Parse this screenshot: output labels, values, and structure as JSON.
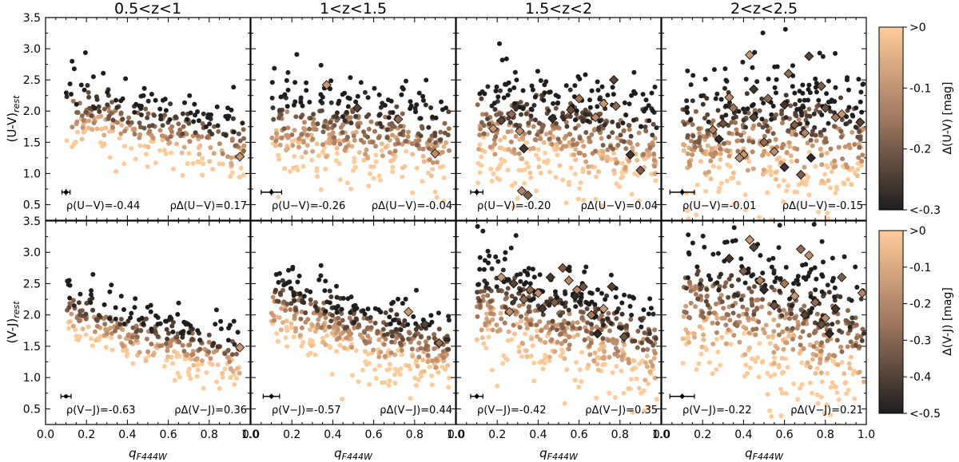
{
  "chart_data": {
    "type": "scatter",
    "figure_description_free": true,
    "xlabel": "q",
    "xlabel_subscript": "F444W",
    "xlim": [
      0.0,
      1.0
    ],
    "xticks": [
      "0.0",
      "0.2",
      "0.4",
      "0.6",
      "0.8",
      "1.0"
    ],
    "ylim": [
      0.25,
      3.5
    ],
    "yticks": [
      "0.5",
      "1.0",
      "1.5",
      "2.0",
      "2.5",
      "3.0",
      "3.5"
    ],
    "columns": [
      {
        "title": "0.5<z<1",
        "zmin": 0.5,
        "zmax": 1.0
      },
      {
        "title": "1<z<1.5",
        "zmin": 1.0,
        "zmax": 1.5
      },
      {
        "title": "1.5<z<2",
        "zmin": 1.5,
        "zmax": 2.0
      },
      {
        "title": "2<z<2.5",
        "zmin": 2.0,
        "zmax": 2.5
      }
    ],
    "rows": [
      {
        "ylabel": "(U-V)",
        "ylabel_subscript": "rest",
        "rho_label": "ρ(U−V)",
        "rho_delta_label": "ρΔ(U−V)",
        "rho_values": [
          "=-0.44",
          "=-0.26",
          "=-0.20",
          "=-0.01"
        ],
        "rho_delta_values": [
          "=0.17",
          "=-0.04",
          "=0.04",
          "=-0.15"
        ],
        "colorbar": {
          "label": "Δ(U-V) [mag]",
          "ticks": [
            ">0",
            "-0.1",
            "-0.2",
            "<-0.3"
          ],
          "range": [
            0,
            -0.3
          ]
        }
      },
      {
        "ylabel": "(V-J)",
        "ylabel_subscript": "rest",
        "rho_label": "ρ(V−J)",
        "rho_delta_label": "ρΔ(V−J)",
        "rho_values": [
          "=-0.63",
          "=-0.57",
          "=-0.42",
          "=-0.22"
        ],
        "rho_delta_values": [
          "=0.36",
          "=0.44",
          "=0.35",
          "=0.21"
        ],
        "colorbar": {
          "label": "Δ(V-J) [mag]",
          "ticks": [
            ">0",
            "-0.1",
            "-0.2",
            "-0.3",
            "-0.4",
            "<-0.5"
          ],
          "range": [
            0,
            -0.5
          ]
        }
      }
    ],
    "colormap": {
      "light": "#ffcc99",
      "mid": "#b08060",
      "dark": "#1e1e1e"
    },
    "panels": [
      {
        "row": 0,
        "col": 0,
        "n": 310,
        "trend": [
          [
            0.2,
            1.95
          ],
          [
            0.5,
            1.75
          ],
          [
            0.95,
            1.45
          ]
        ],
        "spread": 0.3,
        "xmin": 0.1,
        "xmax": 0.97,
        "diamonds": [
          [
            0.95,
            1.27
          ]
        ],
        "errorbar": {
          "x": 0.1,
          "y": 0.7,
          "xerr": 0.02,
          "yerr": 0.05
        }
      },
      {
        "row": 0,
        "col": 1,
        "n": 420,
        "trend": [
          [
            0.15,
            1.8
          ],
          [
            0.5,
            1.72
          ],
          [
            0.95,
            1.5
          ]
        ],
        "spread": 0.4,
        "xmin": 0.1,
        "xmax": 0.97,
        "diamonds": [
          [
            0.37,
            2.42
          ],
          [
            0.52,
            2.05
          ],
          [
            0.72,
            1.87
          ],
          [
            0.9,
            1.32
          ]
        ],
        "errorbar": {
          "x": 0.1,
          "y": 0.7,
          "xerr": 0.05,
          "yerr": 0.05
        }
      },
      {
        "row": 0,
        "col": 2,
        "n": 500,
        "trend": [
          [
            0.15,
            1.75
          ],
          [
            0.5,
            1.68
          ],
          [
            0.95,
            1.45
          ]
        ],
        "spread": 0.45,
        "xmin": 0.1,
        "xmax": 0.98,
        "diamonds": [
          [
            0.18,
            1.72
          ],
          [
            0.22,
            1.85
          ],
          [
            0.27,
            1.95
          ],
          [
            0.31,
            1.68
          ],
          [
            0.33,
            1.4
          ],
          [
            0.35,
            0.65
          ],
          [
            0.32,
            0.72
          ],
          [
            0.47,
            1.88
          ],
          [
            0.56,
            2.02
          ],
          [
            0.6,
            2.2
          ],
          [
            0.72,
            2.12
          ],
          [
            0.77,
            2.5
          ],
          [
            0.78,
            2.08
          ],
          [
            0.68,
            1.9
          ],
          [
            0.85,
            1.3
          ],
          [
            0.9,
            1.05
          ]
        ],
        "errorbar": {
          "x": 0.1,
          "y": 0.7,
          "xerr": 0.03,
          "yerr": 0.05
        }
      },
      {
        "row": 0,
        "col": 3,
        "n": 500,
        "trend": [
          [
            0.15,
            1.6
          ],
          [
            0.5,
            1.62
          ],
          [
            0.95,
            1.55
          ]
        ],
        "spread": 0.5,
        "xmin": 0.1,
        "xmax": 0.99,
        "diamonds": [
          [
            0.43,
            2.9
          ],
          [
            0.72,
            2.88
          ],
          [
            0.62,
            2.6
          ],
          [
            0.33,
            2.22
          ],
          [
            0.45,
            2.35
          ],
          [
            0.78,
            2.4
          ],
          [
            0.25,
            1.7
          ],
          [
            0.28,
            1.55
          ],
          [
            0.3,
            1.8
          ],
          [
            0.35,
            2.05
          ],
          [
            0.4,
            1.3
          ],
          [
            0.45,
            1.9
          ],
          [
            0.5,
            1.5
          ],
          [
            0.55,
            1.35
          ],
          [
            0.6,
            2.1
          ],
          [
            0.65,
            1.78
          ],
          [
            0.7,
            1.65
          ],
          [
            0.73,
            1.25
          ],
          [
            0.8,
            2.05
          ],
          [
            0.85,
            1.9
          ],
          [
            0.88,
            1.95
          ],
          [
            0.97,
            1.82
          ],
          [
            0.52,
            2.2
          ],
          [
            0.38,
            1.25
          ],
          [
            0.6,
            1.1
          ],
          [
            0.68,
            0.98
          ]
        ],
        "errorbar": {
          "x": 0.1,
          "y": 0.7,
          "xerr": 0.06,
          "yerr": 0.05
        }
      },
      {
        "row": 1,
        "col": 0,
        "n": 330,
        "trend": [
          [
            0.15,
            2.05
          ],
          [
            0.4,
            1.7
          ],
          [
            0.95,
            1.35
          ]
        ],
        "spread": 0.25,
        "xmin": 0.1,
        "xmax": 0.96,
        "diamonds": [
          [
            0.95,
            1.48
          ]
        ],
        "errorbar": {
          "x": 0.1,
          "y": 0.7,
          "xerr": 0.025,
          "yerr": 0.03
        }
      },
      {
        "row": 1,
        "col": 1,
        "n": 450,
        "trend": [
          [
            0.15,
            2.15
          ],
          [
            0.5,
            1.75
          ],
          [
            0.95,
            1.45
          ]
        ],
        "spread": 0.32,
        "xmin": 0.1,
        "xmax": 0.97,
        "diamonds": [
          [
            0.77,
            2.05
          ],
          [
            0.85,
            1.85
          ],
          [
            0.92,
            1.55
          ]
        ],
        "errorbar": {
          "x": 0.1,
          "y": 0.7,
          "xerr": 0.04,
          "yerr": 0.04
        }
      },
      {
        "row": 1,
        "col": 2,
        "n": 520,
        "trend": [
          [
            0.15,
            2.2
          ],
          [
            0.5,
            1.85
          ],
          [
            0.95,
            1.5
          ]
        ],
        "spread": 0.45,
        "xmin": 0.1,
        "xmax": 0.98,
        "diamonds": [
          [
            0.22,
            2.6
          ],
          [
            0.28,
            2.5
          ],
          [
            0.36,
            2.4
          ],
          [
            0.4,
            2.35
          ],
          [
            0.46,
            2.6
          ],
          [
            0.48,
            2.2
          ],
          [
            0.55,
            2.55
          ],
          [
            0.58,
            2.3
          ],
          [
            0.62,
            2.45
          ],
          [
            0.66,
            2.0
          ],
          [
            0.72,
            2.1
          ],
          [
            0.76,
            2.45
          ],
          [
            0.33,
            2.25
          ],
          [
            0.26,
            2.05
          ],
          [
            0.42,
            2.1
          ],
          [
            0.52,
            2.75
          ],
          [
            0.59,
            2.4
          ],
          [
            0.69,
            1.7
          ],
          [
            0.82,
            1.65
          ]
        ],
        "errorbar": {
          "x": 0.1,
          "y": 0.7,
          "xerr": 0.03,
          "yerr": 0.04
        }
      },
      {
        "row": 1,
        "col": 3,
        "n": 520,
        "trend": [
          [
            0.15,
            2.2
          ],
          [
            0.5,
            2.0
          ],
          [
            0.95,
            1.55
          ]
        ],
        "spread": 0.55,
        "xmin": 0.1,
        "xmax": 0.99,
        "diamonds": [
          [
            0.43,
            3.2
          ],
          [
            0.45,
            3.08
          ],
          [
            0.68,
            3.05
          ],
          [
            0.72,
            2.95
          ],
          [
            0.33,
            2.9
          ],
          [
            0.4,
            2.7
          ],
          [
            0.48,
            2.55
          ],
          [
            0.5,
            2.4
          ],
          [
            0.55,
            2.15
          ],
          [
            0.6,
            2.5
          ],
          [
            0.65,
            2.3
          ],
          [
            0.7,
            2.0
          ],
          [
            0.75,
            2.2
          ],
          [
            0.8,
            1.95
          ],
          [
            0.85,
            2.1
          ],
          [
            0.88,
            2.6
          ],
          [
            0.98,
            2.35
          ],
          [
            0.82,
            1.7
          ],
          [
            0.78,
            1.85
          ]
        ],
        "errorbar": {
          "x": 0.1,
          "y": 0.7,
          "xerr": 0.06,
          "yerr": 0.04
        }
      }
    ]
  }
}
